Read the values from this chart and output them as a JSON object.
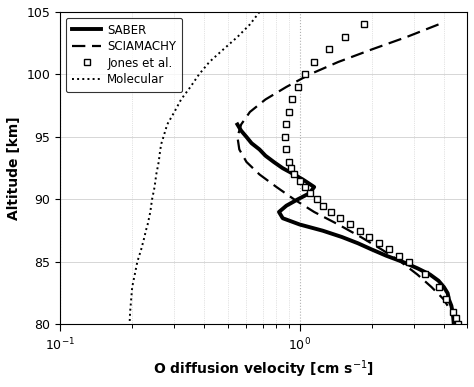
{
  "title": "",
  "xlabel": "O diffusion velocity [cm s$^{-1}$]",
  "ylabel": "Altitude [km]",
  "xlim": [
    0.1,
    5.0
  ],
  "ylim": [
    80,
    105
  ],
  "yticks": [
    80,
    85,
    90,
    95,
    100,
    105
  ],
  "saber_alt": [
    96,
    95.5,
    95,
    94.5,
    94,
    93.5,
    93,
    92.5,
    92,
    91.5,
    91,
    90.5,
    90,
    89.5,
    89,
    88.5,
    88,
    87.5,
    87,
    86.5,
    86,
    85.5,
    85,
    84.5,
    84,
    83.5,
    83,
    82.5,
    82,
    81.5,
    81,
    80.5,
    80
  ],
  "saber_vel": [
    0.55,
    0.57,
    0.6,
    0.63,
    0.68,
    0.72,
    0.78,
    0.85,
    0.95,
    1.05,
    1.15,
    1.1,
    0.98,
    0.88,
    0.82,
    0.85,
    1.0,
    1.25,
    1.5,
    1.75,
    2.0,
    2.3,
    2.7,
    3.1,
    3.5,
    3.8,
    4.0,
    4.15,
    4.2,
    4.3,
    4.35,
    4.38,
    4.4
  ],
  "sciamachy_alt": [
    104,
    103,
    102,
    101,
    100,
    99,
    98,
    97,
    96,
    95,
    94,
    93,
    92,
    91,
    90,
    89,
    88,
    87,
    86,
    85,
    84,
    83,
    82,
    81,
    80
  ],
  "sciamachy_vel": [
    3.8,
    2.8,
    2.0,
    1.45,
    1.1,
    0.88,
    0.72,
    0.62,
    0.57,
    0.55,
    0.56,
    0.6,
    0.68,
    0.8,
    0.95,
    1.15,
    1.45,
    1.8,
    2.2,
    2.65,
    3.1,
    3.55,
    4.0,
    4.3,
    4.55
  ],
  "jones_alt": [
    104,
    103,
    102,
    101,
    100,
    99,
    98,
    97,
    96,
    95,
    94,
    93,
    92.5,
    92,
    91.5,
    91,
    90.5,
    90,
    89.5,
    89,
    88.5,
    88,
    87.5,
    87,
    86.5,
    86,
    85.5,
    85,
    84,
    83,
    82,
    81,
    80.5,
    80
  ],
  "jones_vel": [
    1.85,
    1.55,
    1.32,
    1.15,
    1.05,
    0.98,
    0.93,
    0.9,
    0.88,
    0.87,
    0.88,
    0.9,
    0.92,
    0.95,
    1.0,
    1.05,
    1.1,
    1.18,
    1.25,
    1.35,
    1.48,
    1.62,
    1.78,
    1.95,
    2.15,
    2.35,
    2.6,
    2.85,
    3.35,
    3.8,
    4.1,
    4.35,
    4.5,
    4.6
  ],
  "molecular_alt": [
    105,
    104,
    103,
    102,
    101,
    100,
    99,
    98,
    97,
    96,
    95,
    94.5,
    94,
    93.5,
    93,
    92.5,
    92,
    91.5,
    91,
    90.5,
    90,
    89.5,
    89,
    88.5,
    88,
    87.5,
    87,
    86,
    85,
    84,
    83,
    82,
    81,
    80
  ],
  "molecular_vel": [
    0.68,
    0.62,
    0.55,
    0.48,
    0.42,
    0.38,
    0.35,
    0.32,
    0.3,
    0.28,
    0.27,
    0.265,
    0.262,
    0.26,
    0.258,
    0.255,
    0.252,
    0.25,
    0.248,
    0.245,
    0.242,
    0.24,
    0.238,
    0.235,
    0.232,
    0.228,
    0.225,
    0.218,
    0.21,
    0.205,
    0.2,
    0.198,
    0.196,
    0.195
  ],
  "legend_labels": [
    "SABER",
    "SCIAMACHY",
    "Jones et al.",
    "Molecular"
  ],
  "background_color": "#ffffff"
}
